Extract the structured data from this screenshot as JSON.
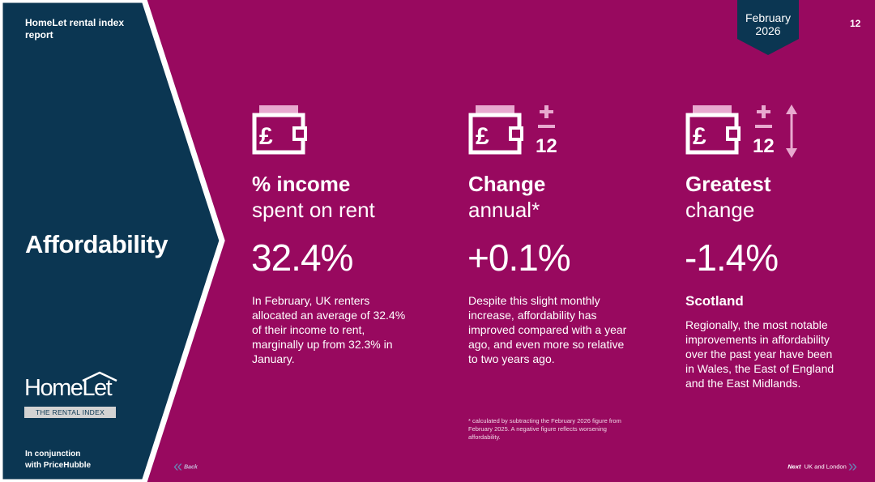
{
  "header": {
    "report_title": "HomeLet rental index report",
    "date_badge_month": "February",
    "date_badge_year": "2026",
    "page_number": "12"
  },
  "sidebar": {
    "section_title": "Affordability",
    "logo_text": "HomeLet",
    "logo_subtitle": "THE RENTAL INDEX",
    "partner_line1": "In conjunction",
    "partner_line2": "with PriceHubble"
  },
  "stats": [
    {
      "heading_bold": "% income",
      "heading_light": "spent on rent",
      "value": "32.4%",
      "body": "In February, UK renters allocated an average of 32.4% of their income to rent, marginally up from 32.3% in January."
    },
    {
      "heading_bold": "Change",
      "heading_light": "annual*",
      "value": "+0.1%",
      "body": "Despite this slight monthly increase, affordability has improved compared with a year ago, and even more so relative to two years ago.",
      "icon_number": "12"
    },
    {
      "heading_bold": "Greatest",
      "heading_light": "change",
      "value": "-1.4%",
      "region": "Scotland",
      "body": "Regionally, the most notable improvements in affordability over the past year have been in Wales, the East of England and the East Midlands.",
      "icon_number": "12"
    }
  ],
  "footnote": "* calculated by subtracting the February 2026 figure from February 2025. A negative figure reflects worsening affordability.",
  "nav": {
    "back_label": "Back",
    "next_label": "Next",
    "next_target": "UK and London"
  },
  "colors": {
    "background": "#98095f",
    "sidebar": "#0b3652",
    "icon_light": "#e8a9cf"
  }
}
